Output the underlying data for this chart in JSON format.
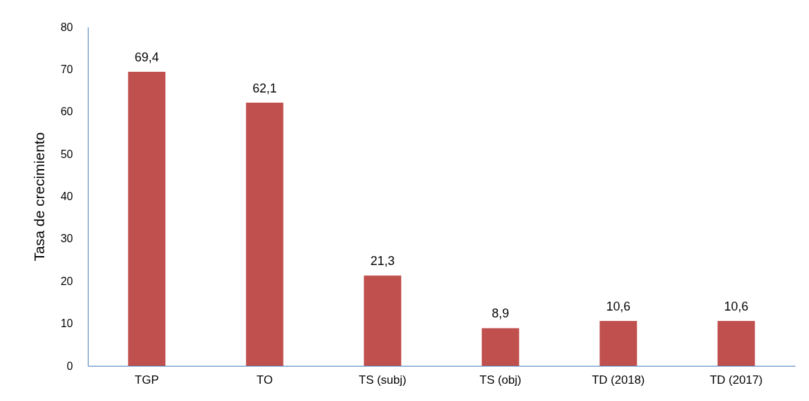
{
  "chart_data": {
    "type": "bar",
    "ylabel": "Tasa de crecimiento",
    "categories": [
      "TGP",
      "TO",
      "TS (subj)",
      "TS (obj)",
      "TD (2018)",
      "TD (2017)"
    ],
    "values": [
      69.4,
      62.1,
      21.3,
      8.9,
      10.6,
      10.6
    ],
    "value_labels": [
      "69,4",
      "62,1",
      "21,3",
      "8,9",
      "10,6",
      "10,6"
    ],
    "color": "#c0504d",
    "ylim": [
      0,
      80
    ],
    "yticks": [
      0,
      10,
      20,
      30,
      40,
      50,
      60,
      70,
      80
    ],
    "grid": false
  }
}
